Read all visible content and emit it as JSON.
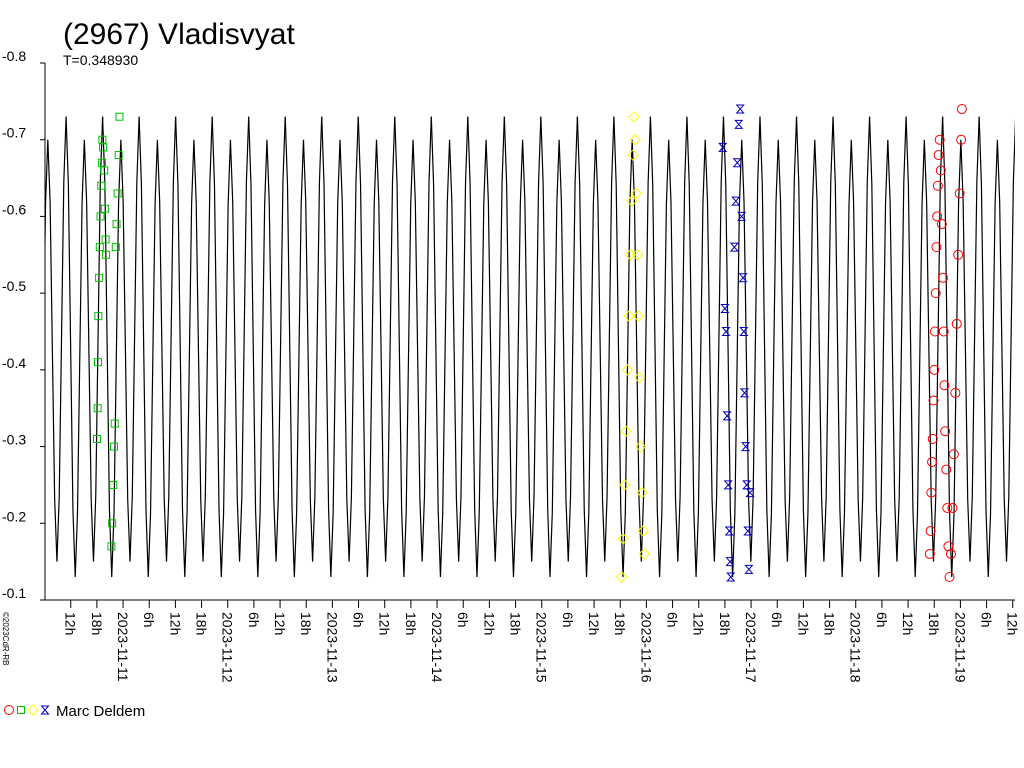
{
  "chart_data": {
    "type": "scatter",
    "title": "(2967) Vladisvyat",
    "copyright": "©2023CdR-RB",
    "legend": {
      "label": "Marc Deldem"
    },
    "ylim": [
      -0.1,
      -0.8
    ],
    "yticks": [
      -0.8,
      -0.7,
      -0.6,
      -0.5,
      -0.4,
      -0.3,
      -0.2,
      -0.1
    ],
    "xlim": [
      "2023-11-10T06:06",
      "2023-11-19T12:31"
    ],
    "xticks": [
      {
        "value": "2023-11-10T12:00",
        "label": "12h"
      },
      {
        "value": "2023-11-10T18:00",
        "label": "18h"
      },
      {
        "value": "2023-11-11T00:00",
        "label": "2023-11-11"
      },
      {
        "value": "2023-11-11T06:00",
        "label": "6h"
      },
      {
        "value": "2023-11-11T12:00",
        "label": "12h"
      },
      {
        "value": "2023-11-11T18:00",
        "label": "18h"
      },
      {
        "value": "2023-11-12T00:00",
        "label": "2023-11-12"
      },
      {
        "value": "2023-11-12T06:00",
        "label": "6h"
      },
      {
        "value": "2023-11-12T12:00",
        "label": "12h"
      },
      {
        "value": "2023-11-12T18:00",
        "label": "18h"
      },
      {
        "value": "2023-11-13T00:00",
        "label": "2023-11-13"
      },
      {
        "value": "2023-11-13T06:00",
        "label": "6h"
      },
      {
        "value": "2023-11-13T12:00",
        "label": "12h"
      },
      {
        "value": "2023-11-13T18:00",
        "label": "18h"
      },
      {
        "value": "2023-11-14T00:00",
        "label": "2023-11-14"
      },
      {
        "value": "2023-11-14T06:00",
        "label": "6h"
      },
      {
        "value": "2023-11-14T12:00",
        "label": "12h"
      },
      {
        "value": "2023-11-14T18:00",
        "label": "18h"
      },
      {
        "value": "2023-11-15T00:00",
        "label": "2023-11-15"
      },
      {
        "value": "2023-11-15T06:00",
        "label": "6h"
      },
      {
        "value": "2023-11-15T12:00",
        "label": "12h"
      },
      {
        "value": "2023-11-15T18:00",
        "label": "18h"
      },
      {
        "value": "2023-11-16T00:00",
        "label": "2023-11-16"
      },
      {
        "value": "2023-11-16T06:00",
        "label": "6h"
      },
      {
        "value": "2023-11-16T12:00",
        "label": "12h"
      },
      {
        "value": "2023-11-16T18:00",
        "label": "18h"
      },
      {
        "value": "2023-11-17T00:00",
        "label": "2023-11-17"
      },
      {
        "value": "2023-11-17T06:00",
        "label": "6h"
      },
      {
        "value": "2023-11-17T12:00",
        "label": "12h"
      },
      {
        "value": "2023-11-17T18:00",
        "label": "18h"
      },
      {
        "value": "2023-11-18T00:00",
        "label": "2023-11-18"
      },
      {
        "value": "2023-11-18T06:00",
        "label": "6h"
      },
      {
        "value": "2023-11-18T12:00",
        "label": "12h"
      },
      {
        "value": "2023-11-18T18:00",
        "label": "18h"
      },
      {
        "value": "2023-11-19T00:00",
        "label": "2023-11-19"
      },
      {
        "value": "2023-11-19T06:00",
        "label": "6h"
      },
      {
        "value": "2023-11-19T12:00",
        "label": "12h"
      }
    ],
    "model": {
      "epoch": "2023-11-10T10:56",
      "period": 0.34893,
      "period_label": "T=0.348930",
      "color": "#000000",
      "phase": [
        0,
        0.0625,
        0.125,
        0.1875,
        0.25,
        0.3125,
        0.375,
        0.4375,
        0.5,
        0.5625,
        0.625,
        0.6875,
        0.75,
        0.8125,
        0.875,
        0.9375
      ],
      "values": [
        -0.73,
        -0.642,
        -0.43,
        -0.218,
        -0.13,
        -0.213,
        -0.415,
        -0.617,
        -0.7,
        -0.619,
        -0.425,
        -0.231,
        -0.15,
        -0.235,
        -0.44,
        -0.645
      ]
    },
    "series": [
      {
        "color": "#ff0000",
        "marker": "circle",
        "x": [
          "2023-11-18T17:00",
          "2023-11-18T17:10",
          "2023-11-18T17:20",
          "2023-11-18T17:30",
          "2023-11-18T17:40",
          "2023-11-18T17:50",
          "2023-11-18T18:00",
          "2023-11-18T18:10",
          "2023-11-18T18:20",
          "2023-11-18T18:30",
          "2023-11-18T18:40",
          "2023-11-18T18:50",
          "2023-11-18T19:00",
          "2023-11-18T19:15",
          "2023-11-18T19:30",
          "2023-11-18T19:45",
          "2023-11-18T20:00",
          "2023-11-18T20:10",
          "2023-11-18T20:20",
          "2023-11-18T20:30",
          "2023-11-18T20:45",
          "2023-11-18T21:00",
          "2023-11-18T21:15",
          "2023-11-18T21:30",
          "2023-11-18T21:50",
          "2023-11-18T22:10",
          "2023-11-18T22:30",
          "2023-11-18T22:50",
          "2023-11-18T23:10",
          "2023-11-18T23:30",
          "2023-11-18T23:50",
          "2023-11-19T00:10",
          "2023-11-19T00:20"
        ],
        "values": [
          -0.16,
          -0.19,
          -0.24,
          -0.28,
          -0.31,
          -0.36,
          -0.4,
          -0.45,
          -0.5,
          -0.56,
          -0.6,
          -0.64,
          -0.68,
          -0.7,
          -0.66,
          -0.59,
          -0.52,
          -0.45,
          -0.38,
          -0.32,
          -0.27,
          -0.22,
          -0.17,
          -0.13,
          -0.16,
          -0.22,
          -0.29,
          -0.37,
          -0.46,
          -0.55,
          -0.63,
          -0.7,
          -0.74
        ]
      },
      {
        "color": "#00c000",
        "marker": "square",
        "x": [
          "2023-11-10T18:02",
          "2023-11-10T18:10",
          "2023-11-10T18:15",
          "2023-11-10T18:20",
          "2023-11-10T18:30",
          "2023-11-10T18:40",
          "2023-11-10T18:50",
          "2023-11-10T19:00",
          "2023-11-10T19:10",
          "2023-11-10T19:15",
          "2023-11-10T19:25",
          "2023-11-10T19:40",
          "2023-11-10T19:50",
          "2023-11-10T20:00",
          "2023-11-10T20:06",
          "2023-11-10T21:20",
          "2023-11-10T21:30",
          "2023-11-10T21:45",
          "2023-11-10T21:55",
          "2023-11-10T22:05",
          "2023-11-10T22:20",
          "2023-11-10T22:30",
          "2023-11-10T22:45",
          "2023-11-10T23:00",
          "2023-11-10T23:10"
        ],
        "values": [
          -0.31,
          -0.35,
          -0.41,
          -0.47,
          -0.52,
          -0.56,
          -0.6,
          -0.64,
          -0.67,
          -0.7,
          -0.69,
          -0.66,
          -0.61,
          -0.57,
          -0.55,
          -0.17,
          -0.2,
          -0.25,
          -0.3,
          -0.33,
          -0.56,
          -0.59,
          -0.63,
          -0.68,
          -0.73
        ]
      },
      {
        "color": "#ffff00",
        "marker": "diamond",
        "x": [
          "2023-11-15T18:20",
          "2023-11-15T18:40",
          "2023-11-15T19:00",
          "2023-11-15T19:20",
          "2023-11-15T19:40",
          "2023-11-15T20:00",
          "2023-11-15T20:20",
          "2023-11-15T20:40",
          "2023-11-15T20:55",
          "2023-11-15T21:10",
          "2023-11-15T21:25",
          "2023-11-15T21:40",
          "2023-11-15T21:55",
          "2023-11-15T22:10",
          "2023-11-15T22:25",
          "2023-11-15T22:40",
          "2023-11-15T23:00",
          "2023-11-15T23:15",
          "2023-11-15T23:30"
        ],
        "values": [
          -0.13,
          -0.18,
          -0.25,
          -0.32,
          -0.4,
          -0.47,
          -0.55,
          -0.62,
          -0.68,
          -0.73,
          -0.7,
          -0.63,
          -0.55,
          -0.47,
          -0.39,
          -0.3,
          -0.24,
          -0.19,
          -0.16
        ]
      },
      {
        "color": "#0000c0",
        "marker": "star",
        "x": [
          "2023-11-16T17:30",
          "2023-11-16T18:00",
          "2023-11-16T18:15",
          "2023-11-16T18:30",
          "2023-11-16T18:45",
          "2023-11-16T19:00",
          "2023-11-16T19:10",
          "2023-11-16T19:20",
          "2023-11-16T20:10",
          "2023-11-16T20:30",
          "2023-11-16T20:50",
          "2023-11-16T21:10",
          "2023-11-16T21:30",
          "2023-11-16T21:50",
          "2023-11-16T22:10",
          "2023-11-16T22:20",
          "2023-11-16T22:30",
          "2023-11-16T22:45",
          "2023-11-16T23:00",
          "2023-11-16T23:15",
          "2023-11-16T23:30",
          "2023-11-16T23:45"
        ],
        "values": [
          -0.69,
          -0.48,
          -0.45,
          -0.34,
          -0.25,
          -0.19,
          -0.15,
          -0.13,
          -0.56,
          -0.62,
          -0.67,
          -0.72,
          -0.74,
          -0.6,
          -0.52,
          -0.45,
          -0.37,
          -0.3,
          -0.25,
          -0.19,
          -0.14,
          -0.24
        ]
      }
    ]
  }
}
